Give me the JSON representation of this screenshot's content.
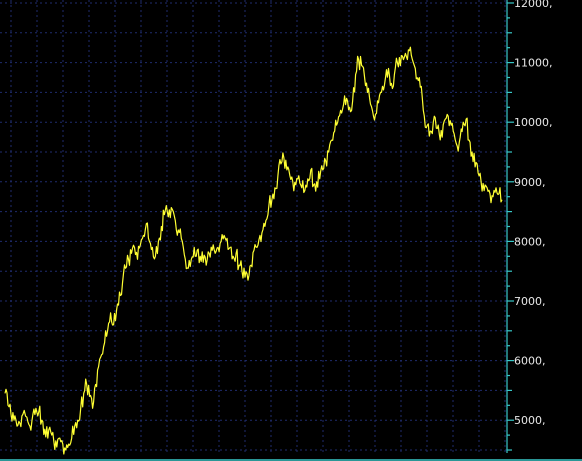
{
  "chart_data": {
    "type": "line",
    "title": "",
    "xlabel": "",
    "ylabel": "",
    "ylim": [
      4450,
      12050
    ],
    "yticks": [
      5000,
      6000,
      7000,
      8000,
      9000,
      10000,
      11000,
      12000
    ],
    "ytick_labels": [
      "5000,",
      "6000,",
      "7000,",
      "8000,",
      "9000,",
      "10000,",
      "11000,",
      "12000,"
    ],
    "grid": true,
    "colors": {
      "background": "#000000",
      "series": "#ffff33",
      "axis": "#38c8c8",
      "grid": "#1f2c6e",
      "text": "#e8e8e8"
    },
    "series": [
      {
        "x": [
          0,
          3,
          6,
          9,
          12,
          15,
          18,
          22,
          25,
          28,
          31,
          34,
          37,
          40,
          43,
          46,
          49,
          52,
          55,
          58,
          61,
          64,
          67,
          70,
          73,
          76,
          79,
          82,
          85,
          88,
          91,
          94,
          97,
          100,
          103,
          106,
          109,
          112,
          115,
          118,
          121,
          124,
          127,
          130,
          133,
          136,
          139,
          142,
          145,
          148,
          151,
          154,
          157,
          160,
          163,
          166,
          169,
          172,
          175,
          178,
          181,
          184,
          187,
          190,
          193,
          196,
          199,
          202,
          205,
          208,
          211,
          214,
          217,
          220,
          223,
          226,
          229,
          232,
          235,
          238,
          241,
          244,
          247,
          250,
          253,
          256,
          259,
          262,
          265,
          268,
          271,
          274,
          277,
          280,
          283,
          286,
          289,
          292,
          295,
          298,
          301,
          304,
          307,
          310,
          313,
          316,
          319,
          322,
          325,
          328,
          331,
          334,
          337,
          340,
          343,
          346,
          349,
          352,
          355,
          358,
          361,
          364,
          367,
          370,
          373,
          376,
          379,
          382,
          385,
          388,
          391,
          394,
          397,
          400,
          403,
          406,
          409,
          412,
          415,
          418,
          421,
          424,
          427,
          430,
          433,
          436,
          439,
          442,
          445,
          448,
          451,
          454,
          457,
          460,
          463,
          466,
          469,
          472,
          475,
          478,
          481,
          484,
          487,
          490,
          493,
          496,
          499
        ],
        "values": [
          5450,
          5250,
          5100,
          5000,
          4900,
          4950,
          5100,
          5050,
          4900,
          5100,
          5200,
          5150,
          5000,
          4850,
          4700,
          4800,
          4650,
          4550,
          4700,
          4600,
          4500,
          4600,
          4700,
          4900,
          5000,
          5200,
          5450,
          5600,
          5400,
          5200,
          5600,
          5900,
          6100,
          6300,
          6500,
          6800,
          6600,
          6850,
          7150,
          7300,
          7550,
          7700,
          7800,
          7900,
          7700,
          7950,
          8100,
          8300,
          8000,
          7900,
          7750,
          8000,
          8250,
          8450,
          8500,
          8400,
          8500,
          8200,
          8150,
          8000,
          7700,
          7550,
          7700,
          7900,
          7850,
          7750,
          7650,
          7600,
          7800,
          7850,
          7800,
          7900,
          8000,
          8100,
          8050,
          7900,
          7750,
          7800,
          7600,
          7500,
          7400,
          7350,
          7600,
          7850,
          7900,
          8100,
          8200,
          8350,
          8600,
          8700,
          8900,
          9100,
          9300,
          9400,
          9200,
          9100,
          9000,
          8950,
          9100,
          8900,
          8850,
          9050,
          9200,
          8950,
          9000,
          9050,
          9200,
          9350,
          9500,
          9700,
          9850,
          10000,
          10200,
          10300,
          10400,
          10250,
          10350,
          10800,
          11050,
          10950,
          10750,
          10500,
          10300,
          10100,
          10150,
          10450,
          10600,
          10750,
          10900,
          10650,
          10800,
          11000,
          10950,
          11050,
          11100,
          11200,
          11050,
          10900,
          10700,
          10600,
          10100,
          9950,
          9850,
          10000,
          9900,
          9800,
          9750,
          10050,
          10100,
          9950,
          9800,
          9600,
          9750,
          10000,
          10050,
          9700,
          9500,
          9250,
          9150,
          9000,
          8850,
          8900,
          8800,
          8750,
          8900,
          8800,
          8700
        ]
      }
    ]
  }
}
